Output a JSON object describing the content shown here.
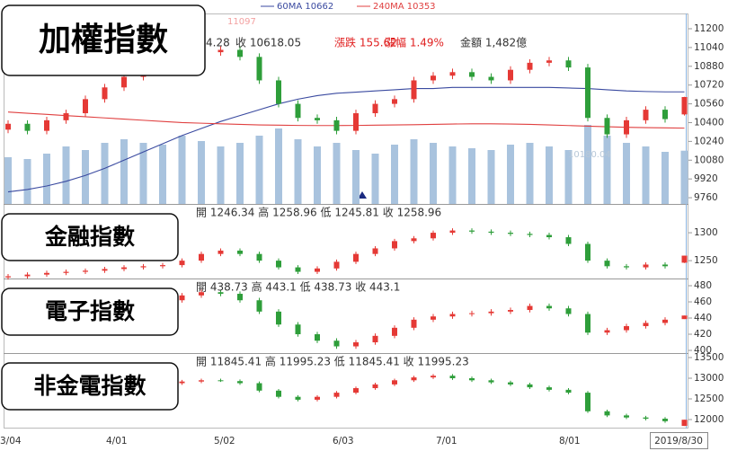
{
  "chart_data": [
    {
      "type": "candlestick",
      "title": "加權指數",
      "info": [
        {
          "text": "4.28",
          "color": "#333"
        },
        {
          "text": "收 10618.05",
          "color": "#333"
        },
        {
          "text": "漲跌 155.62",
          "color": "#e02020"
        },
        {
          "text": "漲幅 1.49%",
          "color": "#e02020"
        },
        {
          "text": "金額 1,482億",
          "color": "#333"
        }
      ],
      "annotations": [
        "11097",
        "10180.04"
      ],
      "x_labels": [
        "3/04",
        "4/01",
        "5/02",
        "6/03",
        "7/01",
        "8/01",
        "2019/8/30"
      ],
      "ylim": [
        9707,
        11330
      ],
      "yticks": [
        11200,
        11040,
        10880,
        10720,
        10560,
        10400,
        10240,
        10080,
        9920,
        9760
      ],
      "up_color": "#e53935",
      "down_color": "#2e9e3a",
      "open": [
        10340,
        10390,
        10330,
        10420,
        10480,
        10600,
        10700,
        10790,
        10880,
        10940,
        10980,
        11000,
        11020,
        10960,
        10760,
        10560,
        10440,
        10420,
        10330,
        10480,
        10560,
        10600,
        10760,
        10800,
        10830,
        10790,
        10760,
        10850,
        10910,
        10930,
        10870,
        10440,
        10300,
        10420,
        10510,
        10470
      ],
      "high": [
        10420,
        10420,
        10450,
        10510,
        10630,
        10730,
        10820,
        10910,
        10970,
        11010,
        11030,
        11050,
        11050,
        10990,
        10790,
        10590,
        10470,
        10450,
        10510,
        10590,
        10630,
        10790,
        10830,
        10860,
        10860,
        10820,
        10880,
        10940,
        10960,
        10960,
        10900,
        10470,
        10450,
        10540,
        10540,
        10620
      ],
      "low": [
        10310,
        10300,
        10300,
        10390,
        10450,
        10570,
        10670,
        10760,
        10850,
        10910,
        10950,
        10970,
        10930,
        10730,
        10530,
        10410,
        10390,
        10300,
        10300,
        10450,
        10530,
        10570,
        10730,
        10770,
        10760,
        10730,
        10730,
        10820,
        10880,
        10840,
        10410,
        10270,
        10270,
        10390,
        10400,
        10460
      ],
      "close": [
        10390,
        10330,
        10420,
        10480,
        10600,
        10700,
        10790,
        10880,
        10940,
        10980,
        11000,
        11020,
        10960,
        10760,
        10560,
        10440,
        10420,
        10330,
        10480,
        10560,
        10600,
        10760,
        10800,
        10830,
        10790,
        10760,
        10850,
        10910,
        10930,
        10870,
        10440,
        10300,
        10420,
        10510,
        10430,
        10618.05
      ],
      "volume": {
        "color": "#a9c3de",
        "values": [
          1300,
          1250,
          1400,
          1600,
          1500,
          1700,
          1800,
          1700,
          1650,
          1900,
          1750,
          1600,
          1700,
          1900,
          2100,
          1800,
          1600,
          1700,
          1500,
          1400,
          1650,
          1800,
          1700,
          1600,
          1550,
          1500,
          1650,
          1700,
          1600,
          1500,
          2200,
          1900,
          1700,
          1600,
          1450,
          1482
        ]
      },
      "series": [
        {
          "name": "60MA 10662",
          "color": "#3a4aa0",
          "values": [
            9810,
            9830,
            9860,
            9900,
            9950,
            10010,
            10080,
            10150,
            10220,
            10290,
            10350,
            10410,
            10460,
            10510,
            10560,
            10600,
            10630,
            10650,
            10660,
            10670,
            10680,
            10690,
            10690,
            10700,
            10700,
            10700,
            10700,
            10700,
            10700,
            10695,
            10690,
            10680,
            10670,
            10665,
            10662,
            10662
          ]
        },
        {
          "name": "240MA 10353",
          "color": "#e04040",
          "values": [
            10490,
            10480,
            10470,
            10460,
            10450,
            10440,
            10430,
            10420,
            10410,
            10400,
            10395,
            10390,
            10385,
            10380,
            10378,
            10376,
            10375,
            10375,
            10376,
            10378,
            10380,
            10382,
            10385,
            10388,
            10390,
            10390,
            10388,
            10385,
            10380,
            10375,
            10370,
            10365,
            10360,
            10357,
            10355,
            10353
          ]
        }
      ]
    },
    {
      "type": "candlestick",
      "title": "金融指數",
      "info": [
        {
          "text": "開 1246.34 高 1258.96 低 1245.81 收 1258.96",
          "color": "#333"
        }
      ],
      "ylim": [
        1218,
        1350
      ],
      "yticks": [
        1300,
        1250
      ],
      "up_color": "#e53935",
      "down_color": "#2e9e3a",
      "open": [
        1220,
        1222,
        1225,
        1228,
        1230,
        1232,
        1235,
        1238,
        1240,
        1242,
        1250,
        1262,
        1268,
        1262,
        1250,
        1238,
        1230,
        1236,
        1248,
        1262,
        1272,
        1285,
        1290,
        1300,
        1304,
        1302,
        1300,
        1298,
        1296,
        1292,
        1280,
        1250,
        1240,
        1238,
        1243,
        1246.34
      ],
      "high": [
        1226,
        1229,
        1232,
        1234,
        1236,
        1239,
        1242,
        1244,
        1246,
        1254,
        1266,
        1272,
        1272,
        1266,
        1254,
        1242,
        1240,
        1252,
        1266,
        1276,
        1289,
        1294,
        1304,
        1308,
        1308,
        1306,
        1304,
        1302,
        1300,
        1296,
        1284,
        1254,
        1244,
        1247,
        1247,
        1258.96
      ],
      "low": [
        1216,
        1218,
        1221,
        1224,
        1226,
        1228,
        1231,
        1234,
        1236,
        1238,
        1246,
        1258,
        1258,
        1246,
        1234,
        1226,
        1226,
        1232,
        1244,
        1258,
        1268,
        1281,
        1286,
        1296,
        1298,
        1296,
        1294,
        1292,
        1288,
        1276,
        1246,
        1236,
        1234,
        1234,
        1236,
        1245.81
      ],
      "close": [
        1222,
        1225,
        1228,
        1230,
        1232,
        1235,
        1238,
        1240,
        1242,
        1250,
        1262,
        1268,
        1262,
        1250,
        1238,
        1230,
        1236,
        1248,
        1262,
        1272,
        1285,
        1290,
        1300,
        1304,
        1302,
        1300,
        1298,
        1296,
        1292,
        1280,
        1250,
        1240,
        1238,
        1243,
        1240,
        1258.96
      ]
    },
    {
      "type": "candlestick",
      "title": "電子指數",
      "info": [
        {
          "text": "開 438.73 高 443.1 低 438.73 收 443.1",
          "color": "#333"
        }
      ],
      "ylim": [
        396.7,
        487.8
      ],
      "yticks": [
        480,
        460,
        440,
        420,
        400
      ],
      "up_color": "#e53935",
      "down_color": "#2e9e3a",
      "open": [
        424,
        425,
        423,
        430,
        435,
        440,
        445,
        448,
        455,
        462,
        468,
        472,
        470,
        462,
        448,
        432,
        420,
        412,
        405,
        410,
        418,
        428,
        438,
        442,
        445,
        446,
        448,
        450,
        455,
        452,
        445,
        422,
        425,
        430,
        434,
        438.73
      ],
      "high": [
        428,
        428,
        433,
        438,
        443,
        448,
        451,
        458,
        465,
        471,
        475,
        475,
        473,
        465,
        451,
        435,
        423,
        415,
        413,
        421,
        431,
        441,
        445,
        448,
        449,
        451,
        453,
        458,
        458,
        455,
        448,
        428,
        433,
        437,
        441,
        443.1
      ],
      "low": [
        421,
        420,
        420,
        427,
        432,
        437,
        442,
        445,
        452,
        459,
        465,
        467,
        459,
        445,
        429,
        417,
        409,
        402,
        402,
        407,
        415,
        425,
        435,
        439,
        442,
        443,
        445,
        447,
        449,
        442,
        419,
        419,
        422,
        427,
        431,
        438.73
      ],
      "close": [
        425,
        423,
        430,
        435,
        440,
        445,
        448,
        455,
        462,
        468,
        472,
        470,
        462,
        448,
        432,
        420,
        412,
        405,
        410,
        418,
        428,
        438,
        442,
        445,
        446,
        448,
        450,
        455,
        452,
        445,
        422,
        425,
        430,
        434,
        438,
        443.1
      ]
    },
    {
      "type": "candlestick",
      "title": "非金電指數",
      "info": [
        {
          "text": "開 11845.41 高 11995.23 低 11845.41 收 11995.23",
          "color": "#333"
        }
      ],
      "ylim": [
        11804,
        13587
      ],
      "yticks": [
        13500,
        13000,
        12500,
        12000
      ],
      "up_color": "#e53935",
      "down_color": "#2e9e3a",
      "open": [
        12350,
        12380,
        12400,
        12450,
        12520,
        12600,
        12680,
        12750,
        12820,
        12880,
        12920,
        12950,
        12930,
        12880,
        12700,
        12550,
        12480,
        12550,
        12650,
        12760,
        12850,
        12950,
        13020,
        13060,
        13000,
        12950,
        12900,
        12850,
        12780,
        12720,
        12650,
        12200,
        12100,
        12050,
        12020,
        11845.41
      ],
      "high": [
        12420,
        12440,
        12490,
        12560,
        12640,
        12720,
        12790,
        12860,
        12920,
        12960,
        12990,
        12990,
        12970,
        12920,
        12740,
        12590,
        12590,
        12690,
        12800,
        12890,
        12990,
        13060,
        13100,
        13100,
        13040,
        12990,
        12940,
        12890,
        12820,
        12760,
        12690,
        12240,
        12140,
        12090,
        12060,
        11995.23
      ],
      "low": [
        12310,
        12340,
        12360,
        12410,
        12480,
        12560,
        12640,
        12710,
        12780,
        12840,
        12880,
        12910,
        12840,
        12660,
        12510,
        12440,
        12440,
        12510,
        12610,
        12720,
        12810,
        12910,
        12980,
        12960,
        12910,
        12860,
        12810,
        12740,
        12680,
        12610,
        12160,
        12060,
        12010,
        11980,
        11920,
        11845.41
      ],
      "close": [
        12380,
        12400,
        12450,
        12520,
        12600,
        12680,
        12750,
        12820,
        12880,
        12920,
        12950,
        12930,
        12880,
        12700,
        12550,
        12480,
        12550,
        12650,
        12760,
        12850,
        12950,
        13020,
        13060,
        13000,
        12950,
        12900,
        12850,
        12780,
        12720,
        12650,
        12200,
        12100,
        12050,
        12020,
        11960,
        11995.23
      ]
    }
  ]
}
